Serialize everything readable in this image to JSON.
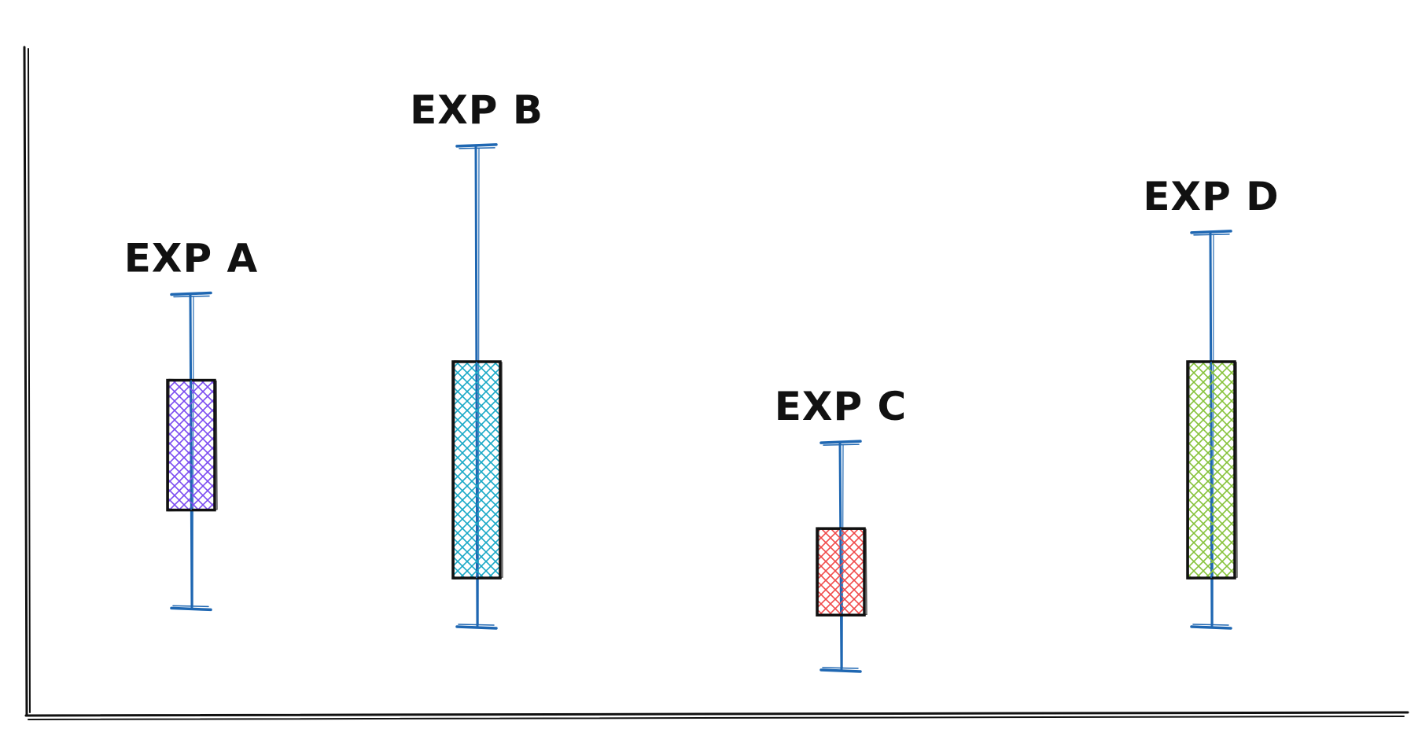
{
  "chart_data": {
    "type": "boxplot",
    "title": "",
    "xlabel": "",
    "ylabel": "",
    "ylim": [
      0,
      100
    ],
    "grid": false,
    "style": "hand-drawn sketch",
    "whisker_color": "#1f67b2",
    "box_outline_color": "#111111",
    "boxes": [
      {
        "label": "EXP A",
        "fill_color": "#7b4bf0",
        "whisker_max": 68,
        "q3": 54,
        "q1": 33,
        "whisker_min": 17
      },
      {
        "label": "EXP B",
        "fill_color": "#18a8c6",
        "whisker_max": 92,
        "q3": 57,
        "q1": 22,
        "whisker_min": 14
      },
      {
        "label": "EXP C",
        "fill_color": "#f04a4a",
        "whisker_max": 44,
        "q3": 30,
        "q1": 16,
        "whisker_min": 7
      },
      {
        "label": "EXP D",
        "fill_color": "#86c23a",
        "whisker_max": 78,
        "q3": 57,
        "q1": 22,
        "whisker_min": 14
      }
    ]
  }
}
